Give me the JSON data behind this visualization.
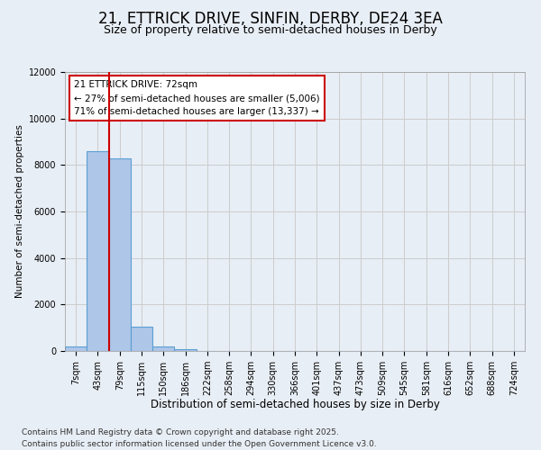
{
  "title_line1": "21, ETTRICK DRIVE, SINFIN, DERBY, DE24 3EA",
  "title_line2": "Size of property relative to semi-detached houses in Derby",
  "xlabel": "Distribution of semi-detached houses by size in Derby",
  "ylabel": "Number of semi-detached properties",
  "categories": [
    "7sqm",
    "43sqm",
    "79sqm",
    "115sqm",
    "150sqm",
    "186sqm",
    "222sqm",
    "258sqm",
    "294sqm",
    "330sqm",
    "366sqm",
    "401sqm",
    "437sqm",
    "473sqm",
    "509sqm",
    "545sqm",
    "581sqm",
    "616sqm",
    "652sqm",
    "688sqm",
    "724sqm"
  ],
  "values": [
    200,
    8600,
    8300,
    1050,
    200,
    60,
    0,
    0,
    0,
    0,
    0,
    0,
    0,
    0,
    0,
    0,
    0,
    0,
    0,
    0,
    0
  ],
  "bar_color": "#aec6e8",
  "bar_edge_color": "#5a9fd4",
  "bar_linewidth": 0.8,
  "vline_x_index": 2,
  "vline_color": "#cc0000",
  "vline_linewidth": 1.5,
  "annotation_title": "21 ETTRICK DRIVE: 72sqm",
  "annotation_line1": "← 27% of semi-detached houses are smaller (5,006)",
  "annotation_line2": "71% of semi-detached houses are larger (13,337) →",
  "annotation_box_color": "#cc0000",
  "ylim": [
    0,
    12000
  ],
  "yticks": [
    0,
    2000,
    4000,
    6000,
    8000,
    10000,
    12000
  ],
  "grid_color": "#cccccc",
  "bg_color": "#e8eef5",
  "plot_bg_color": "#e8eef5",
  "footer_line1": "Contains HM Land Registry data © Crown copyright and database right 2025.",
  "footer_line2": "Contains public sector information licensed under the Open Government Licence v3.0.",
  "title1_fontsize": 12,
  "title2_fontsize": 9,
  "xlabel_fontsize": 8.5,
  "ylabel_fontsize": 7.5,
  "tick_fontsize": 7,
  "footer_fontsize": 6.5,
  "annotation_fontsize": 7.5
}
